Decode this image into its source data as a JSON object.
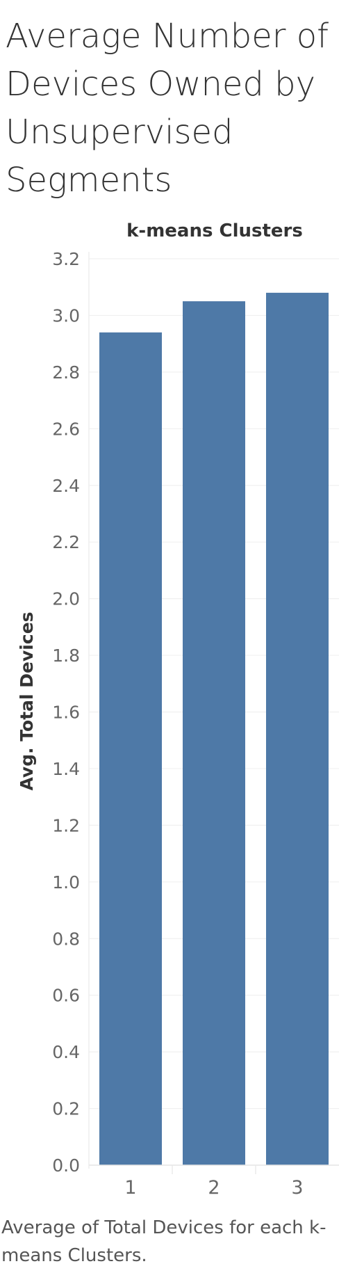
{
  "title": "Average Number of Devices Owned by Unsupervised Segments",
  "caption": "Average of Total Devices for each k-means Clusters.",
  "chart_data": {
    "type": "bar",
    "title": "Average Number of Devices Owned by Unsupervised Segments",
    "xlabel": "k-means Clusters",
    "ylabel": "Avg. Total Devices",
    "categories": [
      "1",
      "2",
      "3"
    ],
    "values": [
      2.94,
      3.05,
      3.08
    ],
    "ylim": [
      0,
      3.2
    ],
    "yticks": [
      "0.0",
      "0.2",
      "0.4",
      "0.6",
      "0.8",
      "1.0",
      "1.2",
      "1.4",
      "1.6",
      "1.8",
      "2.0",
      "2.2",
      "2.4",
      "2.6",
      "2.8",
      "3.0",
      "3.2"
    ],
    "grid": true,
    "bar_color": "#4e79a7"
  }
}
